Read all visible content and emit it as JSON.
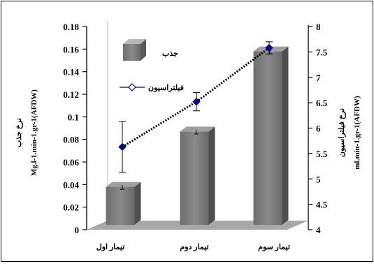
{
  "chart_data": {
    "type": "bar+line",
    "categories": [
      "تیمار اول",
      "تیمار دوم",
      "تیمار سوم"
    ],
    "series": [
      {
        "name": "جذب",
        "kind": "bar",
        "axis": "left",
        "values": [
          0.038,
          0.087,
          0.158
        ],
        "error": [
          0.001,
          0.001,
          0.001
        ],
        "color": "#707070"
      },
      {
        "name": "فیلتراسیون",
        "kind": "line",
        "axis": "right",
        "values": [
          5.63,
          6.52,
          7.58
        ],
        "error": [
          0.5,
          0.18,
          0.12
        ],
        "color": "#000080"
      }
    ],
    "left_axis": {
      "label_fa": "نرخ جذب",
      "label_unit": "Mg.l-1.min-1.gr-1(AFDW)",
      "ylim": [
        0,
        0.18
      ],
      "ticks": [
        "0",
        "0.02",
        "0.04",
        "0.06",
        "0.08",
        "0.1",
        "0.12",
        "0.14",
        "0.16",
        "0.18"
      ]
    },
    "right_axis": {
      "label_fa": "نرخ فیلتراسیون",
      "label_unit": "ml.min-1.gr-1(AFDW)",
      "ylim": [
        4,
        8
      ],
      "ticks": [
        "4",
        "4.5",
        "5",
        "5.5",
        "6",
        "6.5",
        "7",
        "7.5",
        "8"
      ]
    },
    "legend_position": "top-left",
    "grid": false
  }
}
